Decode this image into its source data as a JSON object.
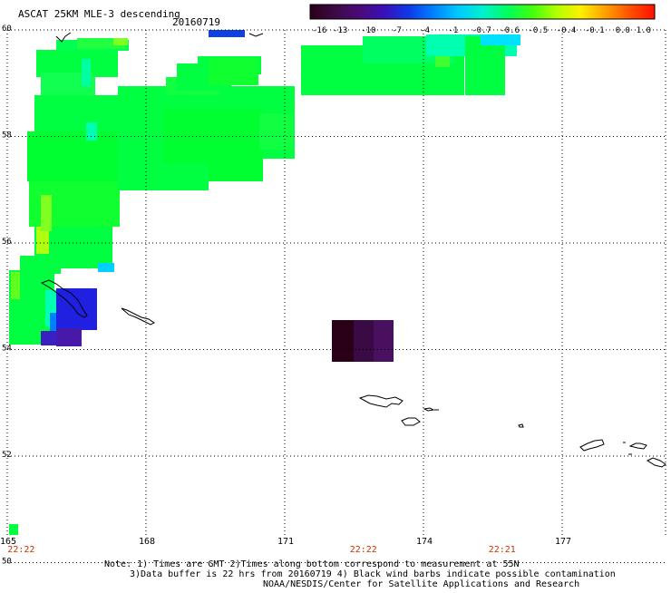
{
  "title": "ASCAT 25KM MLE-3 descending",
  "date": "20160719",
  "colorbar": {
    "labels": [
      "-16",
      "-13",
      "-10",
      "-7",
      "-4",
      "-1",
      "-0.7",
      "-0.6",
      "-0.5",
      "-0.4",
      "-0.1",
      "0.0",
      "1.0"
    ],
    "colors": [
      "#2a0018",
      "#3c0a44",
      "#4a0a78",
      "#3a10b8",
      "#1038e8",
      "#0080ff",
      "#00c8ff",
      "#00f0d0",
      "#00ff60",
      "#40ff10",
      "#b0ff00",
      "#fff000",
      "#ffa000",
      "#ff5000",
      "#ff1000"
    ]
  },
  "axes": {
    "lon_labels": [
      "165",
      "168",
      "171",
      "174",
      "177"
    ],
    "lat_labels": [
      "60",
      "58",
      "56",
      "54",
      "52",
      "50"
    ]
  },
  "pass_times": [
    {
      "lon": 165.3,
      "label": "22:22"
    },
    {
      "lon": 172.7,
      "label": "22:22"
    },
    {
      "lon": 175.7,
      "label": "22:21"
    }
  ],
  "notes": [
    "Note: 1) Times are GMT 2)Times along bottom correspond to measurement at 55N",
    "3)Data buffer is 22 hrs from 20160719 4) Black wind barbs indicate possible contamination",
    "NOAA/NESDIS/Center for Satellite Applications and Research"
  ]
}
